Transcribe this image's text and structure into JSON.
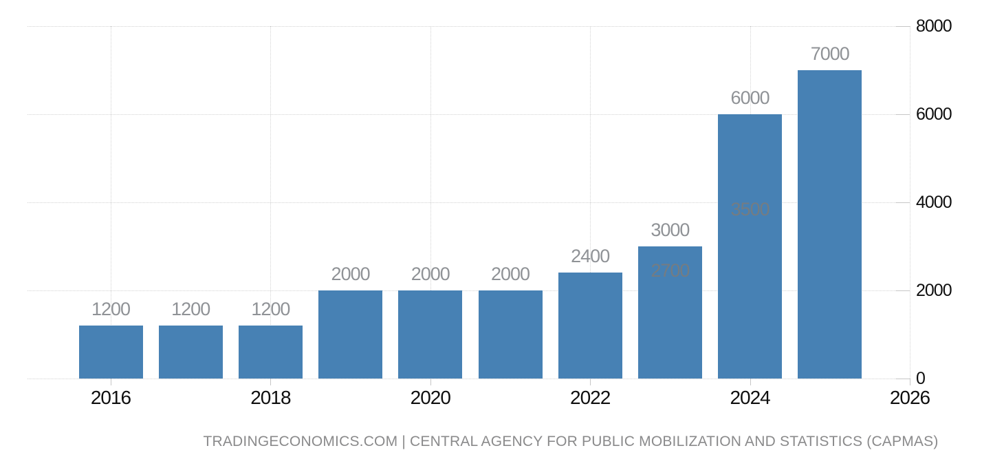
{
  "chart_data": {
    "type": "bar",
    "title": "",
    "xlabel": "",
    "ylabel": "",
    "x": [
      2016,
      2017,
      2018,
      2019,
      2020,
      2021,
      2022,
      2023,
      2024,
      2025
    ],
    "values": [
      1200,
      1200,
      1200,
      2000,
      2000,
      2000,
      2400,
      3000,
      6000,
      7000
    ],
    "bar_value_labels": [
      "1200",
      "1200",
      "1200",
      "2000",
      "2000",
      "2000",
      "2400",
      "3000",
      "6000",
      "7000"
    ],
    "ghost_labels": [
      {
        "year": 2023,
        "text": "2700",
        "approx_value_y": 2450
      },
      {
        "year": 2024,
        "text": "3500",
        "approx_value_y": 3840
      }
    ],
    "xticks": [
      "2016",
      "2018",
      "2020",
      "2022",
      "2024",
      "2026"
    ],
    "xtick_years": [
      2016,
      2018,
      2020,
      2022,
      2024,
      2026
    ],
    "yticks": [
      "0",
      "2000",
      "4000",
      "6000",
      "8000"
    ],
    "ytick_values": [
      0,
      2000,
      4000,
      6000,
      8000
    ],
    "ylim": [
      0,
      8000
    ],
    "grid": true,
    "legend": null,
    "colors": {
      "bar": "#4781B4",
      "grid": "#d2d2d2",
      "tick": "#c6c6c6",
      "axis_label": "#0f0f0f",
      "data_label": "#8f9296",
      "ghost_label": "#7d7c7a",
      "footer": "#8a8a8b",
      "background": "#ffffff"
    }
  },
  "footer": {
    "source_text": "TRADINGECONOMICS.COM | CENTRAL AGENCY FOR PUBLIC MOBILIZATION AND STATISTICS (CAPMAS)"
  }
}
